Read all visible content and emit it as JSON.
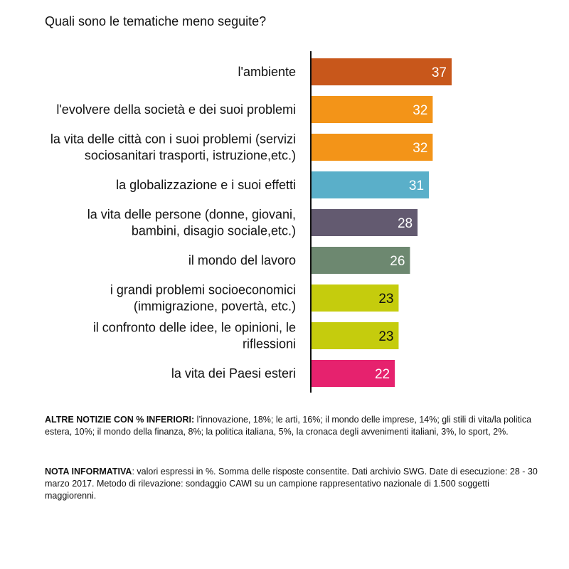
{
  "chart_data": {
    "type": "bar",
    "orientation": "horizontal",
    "title": "Quali sono le tematiche meno seguite?",
    "categories": [
      [
        "l'ambiente"
      ],
      [
        "l'evolvere della società e dei suoi problemi"
      ],
      [
        "la vita delle città con i suoi problemi (servizi",
        "sociosanitari trasporti, istruzione,etc.)"
      ],
      [
        "la globalizzazione e i suoi effetti"
      ],
      [
        "la vita delle persone (donne, giovani,",
        "bambini, disagio sociale,etc.)"
      ],
      [
        "il mondo del lavoro"
      ],
      [
        "i grandi problemi socioeconomici",
        "(immigrazione, povertà, etc.)"
      ],
      [
        "il confronto delle idee, le opinioni, le",
        "riflessioni"
      ],
      [
        "la vita dei Paesi esteri"
      ]
    ],
    "values": [
      37,
      32,
      32,
      31,
      28,
      26,
      23,
      23,
      22
    ],
    "colors": [
      "#c8571b",
      "#f39418",
      "#f39418",
      "#5aafc9",
      "#635a70",
      "#6d8870",
      "#c5cc0d",
      "#c5cc0d",
      "#e6226e"
    ],
    "value_label_colors": [
      "#ffffff",
      "#ffffff",
      "#ffffff",
      "#ffffff",
      "#ffffff",
      "#ffffff",
      "#111111",
      "#111111",
      "#ffffff"
    ],
    "xlim": [
      0,
      37
    ],
    "grid": false,
    "legend": "none"
  },
  "notes": {
    "other_news_label": "ALTRE NOTIZIE CON % INFERIORI:",
    "other_news_text": " l’innovazione, 18%; le arti, 16%; il mondo delle imprese, 14%; gli stili di vita/la politica estera, 10%; il mondo della finanza, 8%; la politica italiana, 5%, la cronaca degli avvenimenti italiani, 3%, lo sport, 2%.",
    "info_label": "NOTA INFORMATIVA",
    "info_text": ": valori espressi in %. Somma delle risposte consentite. Dati archivio SWG. Date di esecuzione: 28 - 30 marzo 2017. Metodo di rilevazione: sondaggio CAWI su un campione rappresentativo nazionale di 1.500 soggetti maggiorenni."
  }
}
